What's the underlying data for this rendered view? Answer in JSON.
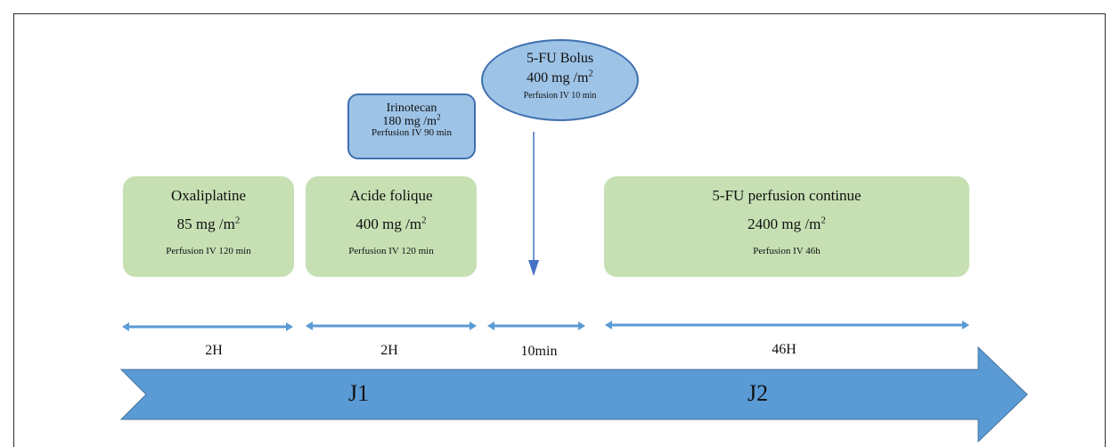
{
  "drugs": {
    "oxaliplatine": {
      "name": "Oxaliplatine",
      "dose": "85 mg /m",
      "dose_sup": "2",
      "route": "Perfusion IV 120 min"
    },
    "acide_folique": {
      "name": "Acide folique",
      "dose": "400 mg /m",
      "dose_sup": "2",
      "route": "Perfusion IV 120 min"
    },
    "irinotecan": {
      "name": "Irinotecan",
      "dose": "180 mg /m",
      "dose_sup": "2",
      "route": "Perfusion IV 90 min"
    },
    "fu_bolus": {
      "name": "5-FU Bolus",
      "dose": "400 mg /m",
      "dose_sup": "2",
      "route": "Perfusion IV 10 min"
    },
    "fu_continue": {
      "name": "5-FU perfusion continue",
      "dose": "2400 mg /m",
      "dose_sup": "2",
      "route": "Perfusion IV 46h"
    }
  },
  "durations": [
    "2H",
    "2H",
    "10min",
    "46H"
  ],
  "days": [
    "J1",
    "J2"
  ],
  "colors": {
    "green_box": "#c6e0b4",
    "blue_box": "#9dc3e6",
    "blue_border": "#3f6fb0",
    "timeline_arrow": "#5b9bd5",
    "arrow_line": "#4472c4"
  }
}
